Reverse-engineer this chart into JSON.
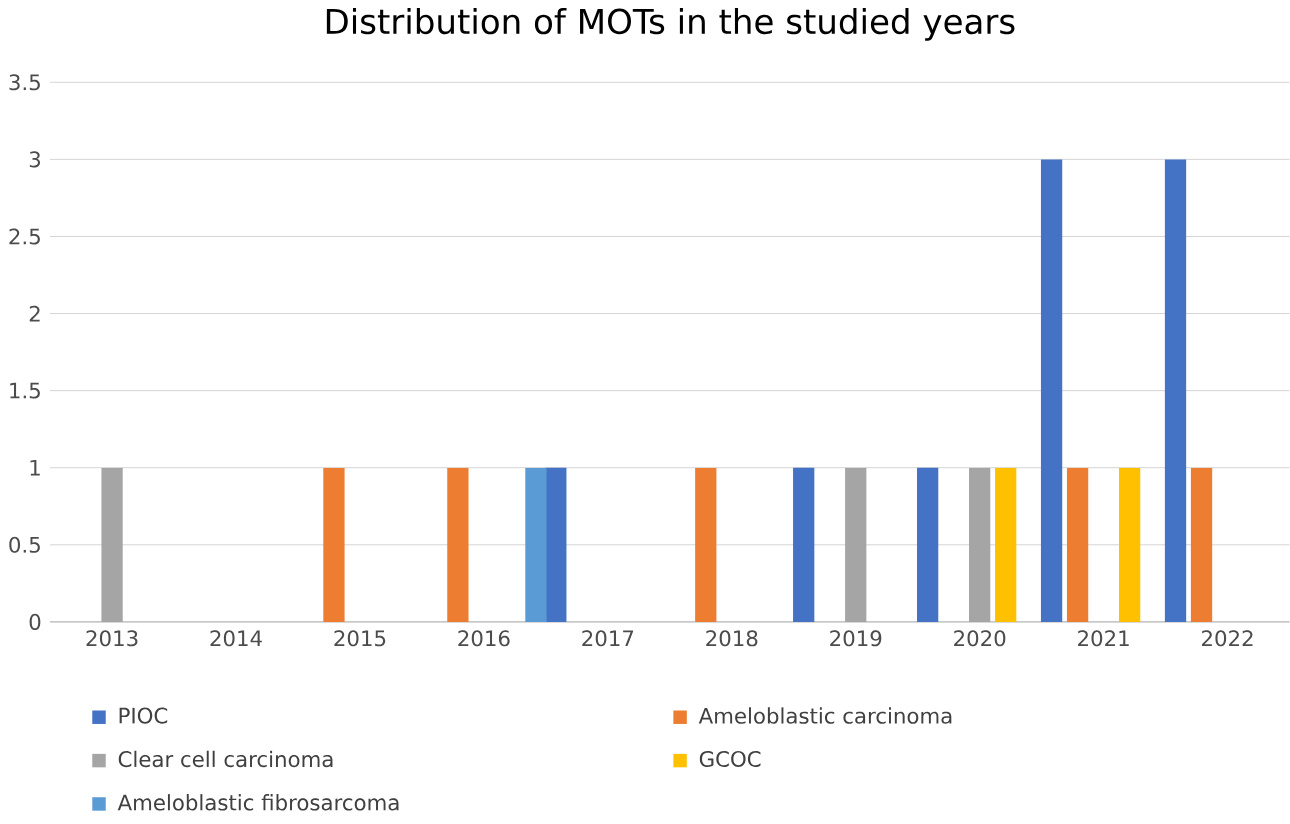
{
  "chart_data": {
    "type": "bar",
    "title": "Distribution of MOTs in the studied years",
    "categories": [
      "2013",
      "2014",
      "2015",
      "2016",
      "2017",
      "2018",
      "2019",
      "2020",
      "2021",
      "2022"
    ],
    "series": [
      {
        "name": "PIOC",
        "color": "#4472c4",
        "values": [
          null,
          null,
          null,
          null,
          1,
          null,
          1,
          1,
          3,
          3
        ]
      },
      {
        "name": "Ameloblastic carcinoma",
        "color": "#ed7d31",
        "values": [
          null,
          null,
          1,
          1,
          null,
          1,
          null,
          null,
          1,
          1
        ]
      },
      {
        "name": "Clear cell carcinoma",
        "color": "#a5a5a5",
        "values": [
          1,
          null,
          null,
          null,
          null,
          null,
          1,
          1,
          null,
          null
        ]
      },
      {
        "name": "GCOC",
        "color": "#ffc000",
        "values": [
          null,
          null,
          null,
          null,
          null,
          null,
          null,
          1,
          1,
          null
        ]
      },
      {
        "name": "Ameloblastic fibrosarcoma",
        "color": "#5b9bd5",
        "values": [
          null,
          null,
          null,
          1,
          null,
          null,
          null,
          null,
          null,
          null
        ]
      }
    ],
    "ylim": [
      0,
      3.5
    ],
    "yticks": [
      0,
      0.5,
      1,
      1.5,
      2,
      2.5,
      3,
      3.5
    ],
    "grid": "y",
    "legend": "bottom"
  }
}
